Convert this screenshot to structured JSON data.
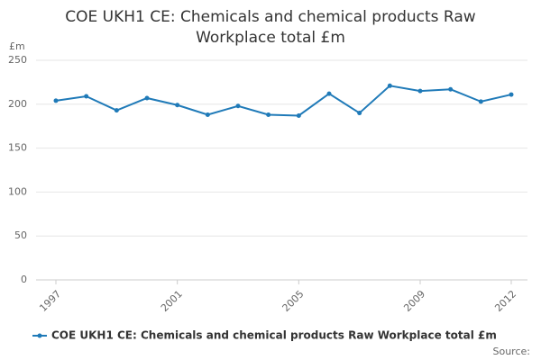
{
  "chart_data": {
    "type": "line",
    "title": "COE UKH1 CE: Chemicals and chemical products Raw Workplace total £m",
    "ylabel": "£m",
    "source": "Source:",
    "x": [
      1997,
      1998,
      1999,
      2000,
      2001,
      2002,
      2003,
      2004,
      2005,
      2006,
      2007,
      2008,
      2009,
      2010,
      2011,
      2012
    ],
    "xlim": [
      1997,
      2012
    ],
    "xticks": [
      1997,
      2001,
      2005,
      2009,
      2012
    ],
    "ylim": [
      0,
      250
    ],
    "yticks": [
      0,
      50,
      100,
      150,
      200,
      250
    ],
    "grid": true,
    "legend": "bottom",
    "series": [
      {
        "name": "COE UKH1 CE: Chemicals and chemical products Raw Workplace total £m",
        "color": "#1f7ab8",
        "values": [
          204,
          209,
          193,
          207,
          199,
          188,
          198,
          188,
          187,
          212,
          190,
          221,
          215,
          217,
          203,
          211
        ]
      }
    ]
  }
}
